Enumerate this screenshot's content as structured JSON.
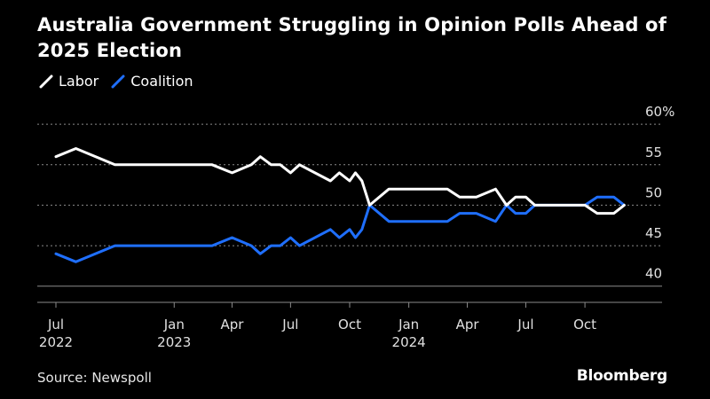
{
  "title": "Australia Government Struggling in Opinion Polls Ahead of 2025 Election",
  "source": "Source: Newspoll",
  "brand": "Bloomberg",
  "colors": {
    "background": "#000000",
    "labor": "#ffffff",
    "coalition": "#1f6fff",
    "grid": "#8a8a8a"
  },
  "chart_data": {
    "type": "line",
    "title": "Australia Government Struggling in Opinion Polls Ahead of 2025 Election",
    "xlabel": "",
    "ylabel": "",
    "ylim": [
      38,
      61
    ],
    "y_ticks": [
      {
        "value": 40,
        "label": "40"
      },
      {
        "value": 45,
        "label": "45"
      },
      {
        "value": 50,
        "label": "50"
      },
      {
        "value": 55,
        "label": "55"
      },
      {
        "value": 60,
        "label": "60%"
      }
    ],
    "x_domain": [
      "2022-07-01",
      "2024-12-31"
    ],
    "x_ticks": [
      {
        "date": "2022-07-01",
        "month": "Jul",
        "year": "2022"
      },
      {
        "date": "2023-01-01",
        "month": "Jan",
        "year": "2023"
      },
      {
        "date": "2023-04-01",
        "month": "Apr",
        "year": ""
      },
      {
        "date": "2023-07-01",
        "month": "Jul",
        "year": ""
      },
      {
        "date": "2023-10-01",
        "month": "Oct",
        "year": ""
      },
      {
        "date": "2024-01-01",
        "month": "Jan",
        "year": "2024"
      },
      {
        "date": "2024-04-01",
        "month": "Apr",
        "year": ""
      },
      {
        "date": "2024-07-01",
        "month": "Jul",
        "year": ""
      },
      {
        "date": "2024-10-01",
        "month": "Oct",
        "year": ""
      }
    ],
    "grid": true,
    "legend_position": "top-left",
    "x": [
      "2022-07-01",
      "2022-08-01",
      "2022-10-01",
      "2022-12-01",
      "2023-02-01",
      "2023-03-01",
      "2023-04-01",
      "2023-05-01",
      "2023-05-15",
      "2023-06-01",
      "2023-06-15",
      "2023-07-01",
      "2023-07-15",
      "2023-09-01",
      "2023-09-15",
      "2023-10-01",
      "2023-10-10",
      "2023-10-20",
      "2023-11-01",
      "2023-12-01",
      "2024-01-01",
      "2024-03-01",
      "2024-03-20",
      "2024-04-15",
      "2024-05-15",
      "2024-06-01",
      "2024-06-15",
      "2024-07-01",
      "2024-07-15",
      "2024-08-01",
      "2024-09-01",
      "2024-10-01",
      "2024-10-20",
      "2024-11-15",
      "2024-12-01"
    ],
    "series": [
      {
        "name": "Labor",
        "color": "#ffffff",
        "values": [
          56,
          57,
          55,
          55,
          55,
          55,
          54,
          55,
          56,
          55,
          55,
          54,
          55,
          53,
          54,
          53,
          54,
          53,
          50,
          52,
          52,
          52,
          51,
          51,
          52,
          50,
          51,
          51,
          50,
          50,
          50,
          50,
          49,
          49,
          50
        ]
      },
      {
        "name": "Coalition",
        "color": "#1f6fff",
        "values": [
          44,
          43,
          45,
          45,
          45,
          45,
          46,
          45,
          44,
          45,
          45,
          46,
          45,
          47,
          46,
          47,
          46,
          47,
          50,
          48,
          48,
          48,
          49,
          49,
          48,
          50,
          49,
          49,
          50,
          50,
          50,
          50,
          51,
          51,
          50
        ]
      }
    ]
  }
}
